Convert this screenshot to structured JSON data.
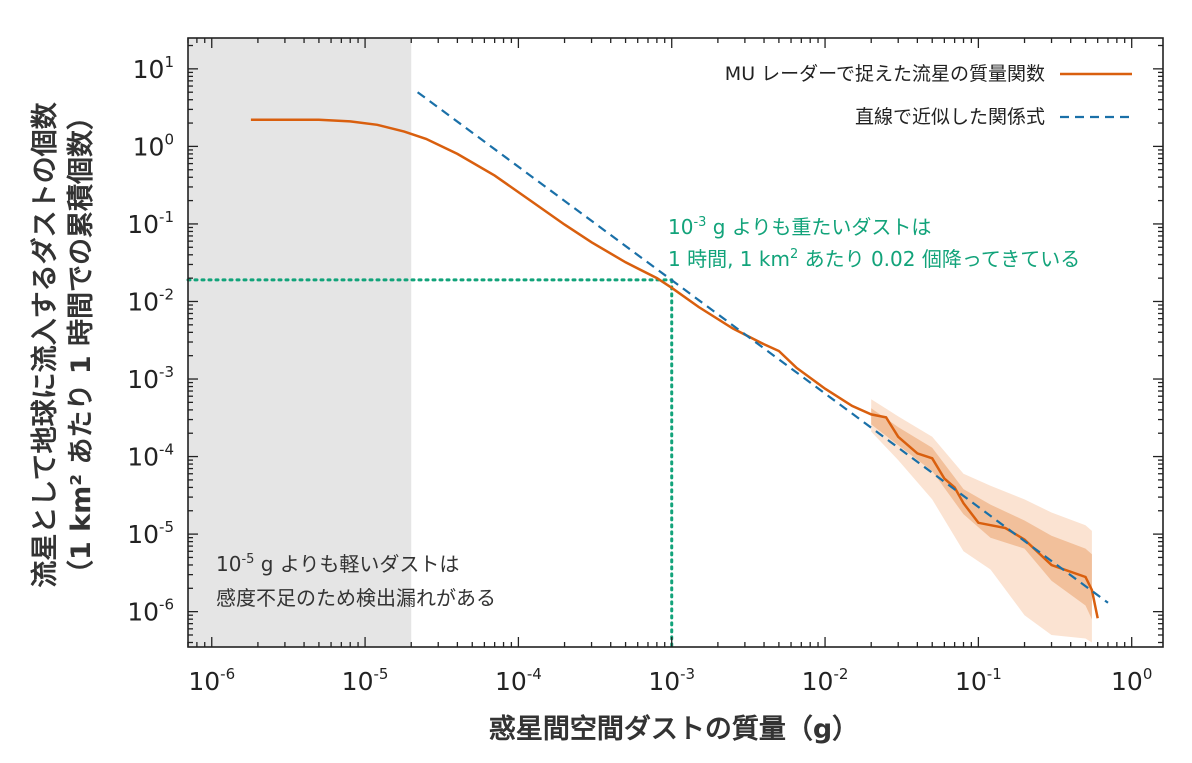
{
  "chart_data": {
    "type": "line",
    "xscale": "log",
    "yscale": "log",
    "xlim": [
      7e-07,
      1.6
    ],
    "ylim": [
      3.5e-07,
      25
    ],
    "xlabel": "惑星間空間ダストの質量（g）",
    "ylabel_line1": "流星として地球に流入するダストの個数",
    "ylabel_line2": "（1 km² あたり 1 時間での累積個数）",
    "x_ticks": [
      {
        "value": 1e-06,
        "base": "10",
        "exp": "-6"
      },
      {
        "value": 1e-05,
        "base": "10",
        "exp": "-5"
      },
      {
        "value": 0.0001,
        "base": "10",
        "exp": "-4"
      },
      {
        "value": 0.001,
        "base": "10",
        "exp": "-3"
      },
      {
        "value": 0.01,
        "base": "10",
        "exp": "-2"
      },
      {
        "value": 0.1,
        "base": "10",
        "exp": "-1"
      },
      {
        "value": 1,
        "base": "10",
        "exp": "0"
      }
    ],
    "y_ticks": [
      {
        "value": 10,
        "base": "10",
        "exp": "1"
      },
      {
        "value": 1,
        "base": "10",
        "exp": "0"
      },
      {
        "value": 0.1,
        "base": "10",
        "exp": "-1"
      },
      {
        "value": 0.01,
        "base": "10",
        "exp": "-2"
      },
      {
        "value": 0.001,
        "base": "10",
        "exp": "-3"
      },
      {
        "value": 0.0001,
        "base": "10",
        "exp": "-4"
      },
      {
        "value": 1e-05,
        "base": "10",
        "exp": "-5"
      },
      {
        "value": 1e-06,
        "base": "10",
        "exp": "-6"
      }
    ],
    "series": [
      {
        "name": "MU レーダーで捉えた流星の質量関数",
        "style": "solid",
        "color": "#d95f0e",
        "x": [
          1.8e-06,
          3e-06,
          5e-06,
          8e-06,
          1.2e-05,
          1.8e-05,
          2.5e-05,
          4e-05,
          7e-05,
          0.00012,
          0.0002,
          0.0003,
          0.0005,
          0.0008,
          0.001,
          0.0015,
          0.0025,
          0.004,
          0.005,
          0.0065,
          0.01,
          0.015,
          0.02,
          0.025,
          0.03,
          0.04,
          0.05,
          0.06,
          0.07,
          0.08,
          0.1,
          0.15,
          0.2,
          0.3,
          0.5,
          0.55,
          0.6
        ],
        "y": [
          2.2,
          2.2,
          2.2,
          2.1,
          1.9,
          1.55,
          1.25,
          0.8,
          0.42,
          0.2,
          0.098,
          0.058,
          0.032,
          0.02,
          0.015,
          0.0085,
          0.0045,
          0.0028,
          0.0023,
          0.0014,
          0.00075,
          0.00045,
          0.00035,
          0.00032,
          0.00018,
          0.00011,
          9.5e-05,
          5.2e-05,
          4e-05,
          2.5e-05,
          1.4e-05,
          1.2e-05,
          8.5e-06,
          4e-06,
          2.8e-06,
          1.9e-06,
          8.2e-07
        ]
      },
      {
        "name": "直線で近似した関係式",
        "style": "dashed",
        "color": "#1a70a8",
        "x": [
          2.2e-05,
          0.7
        ],
        "y": [
          5.0,
          1.3e-06
        ]
      }
    ],
    "uncertainty_bands": [
      {
        "level": "inner",
        "color": "#f2c09b",
        "x": [
          0.02,
          0.03,
          0.05,
          0.08,
          0.12,
          0.2,
          0.3,
          0.5,
          0.55
        ],
        "upper": [
          0.00042,
          0.00024,
          0.00013,
          3.8e-05,
          2.4e-05,
          1.5e-05,
          9.5e-06,
          6.5e-06,
          5.5e-06
        ],
        "lower": [
          0.00026,
          0.00014,
          6.5e-05,
          1.8e-05,
          9e-06,
          6.5e-06,
          2.5e-06,
          1.2e-06,
          8e-07
        ]
      },
      {
        "level": "outer",
        "color": "#fbe3d2",
        "x": [
          0.02,
          0.03,
          0.05,
          0.08,
          0.12,
          0.2,
          0.3,
          0.5,
          0.55
        ],
        "upper": [
          0.00055,
          0.00033,
          0.00018,
          6e-05,
          4.2e-05,
          2.8e-05,
          1.9e-05,
          1.3e-05,
          1.1e-05
        ],
        "lower": [
          0.00021,
          9e-05,
          2.8e-05,
          6e-06,
          3.5e-06,
          9e-07,
          5e-07,
          4.5e-07,
          4e-07
        ]
      }
    ],
    "shaded_region": {
      "x_from": 7e-07,
      "x_to": 2e-05,
      "color": "#e5e5e5"
    },
    "reference_lines": {
      "x": 0.001,
      "y": 0.019,
      "color": "#12a37a"
    },
    "legend_position": "top-right",
    "grid": false
  },
  "annotations": {
    "green_line1_a": "10",
    "green_line1_sup": "-3",
    "green_line1_b": " g よりも重たいダストは",
    "green_line2_a": "1 時間, 1 km",
    "green_line2_sup": "2",
    "green_line2_b": " あたり 0.02 個降ってきている",
    "gray_line1_a": "10",
    "gray_line1_sup": "-5",
    "gray_line1_b": " g よりも軽いダストは",
    "gray_line2": "感度不足のため検出漏れがある"
  },
  "colors": {
    "orange": "#d95f0e",
    "blue": "#1a70a8",
    "green": "#12a37a",
    "gray_region": "#e5e5e5"
  }
}
